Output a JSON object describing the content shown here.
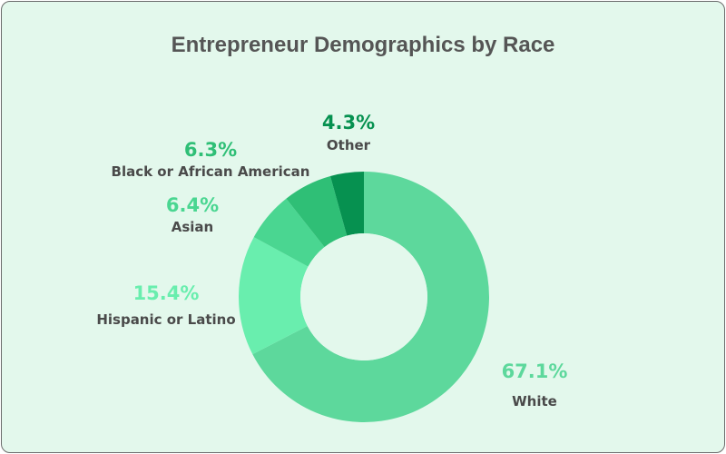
{
  "chart_data": {
    "type": "pie",
    "variant": "donut",
    "title": "Entrepreneur Demographics by Race",
    "slices": [
      {
        "label": "White",
        "value": 67.1,
        "display": "67.1%",
        "color": "#5dd89c"
      },
      {
        "label": "Hispanic or Latino",
        "value": 15.4,
        "display": "15.4%",
        "color": "#69eeae"
      },
      {
        "label": "Asian",
        "value": 6.4,
        "display": "6.4%",
        "color": "#4ad691"
      },
      {
        "label": "Black or African American",
        "value": 6.3,
        "display": "6.3%",
        "color": "#2fbf76"
      },
      {
        "label": "Other",
        "value": 4.3,
        "display": "4.3%",
        "color": "#069150"
      }
    ],
    "label_color_percent": [
      "#5dd89c",
      "#69eeae",
      "#4ad691",
      "#2fbf76",
      "#069150"
    ],
    "label_color_name": "#4a4a4a",
    "background": "#e3f8ec"
  }
}
